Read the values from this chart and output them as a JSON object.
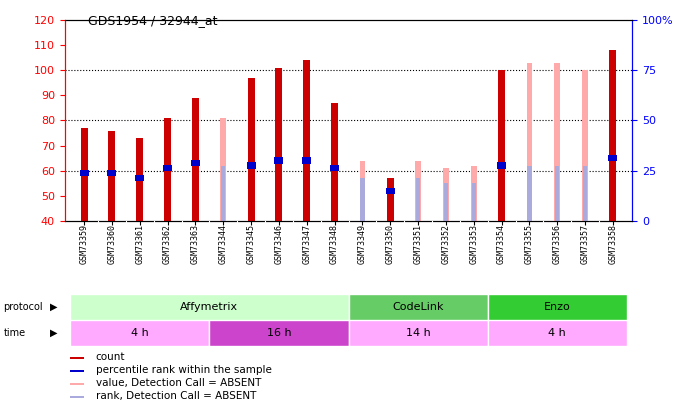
{
  "title": "GDS1954 / 32944_at",
  "samples": [
    "GSM73359",
    "GSM73360",
    "GSM73361",
    "GSM73362",
    "GSM73363",
    "GSM73344",
    "GSM73345",
    "GSM73346",
    "GSM73347",
    "GSM73348",
    "GSM73349",
    "GSM73350",
    "GSM73351",
    "GSM73352",
    "GSM73353",
    "GSM73354",
    "GSM73355",
    "GSM73356",
    "GSM73357",
    "GSM73358"
  ],
  "count_values": [
    77,
    76,
    73,
    81,
    89,
    null,
    97,
    101,
    104,
    87,
    null,
    57,
    null,
    null,
    null,
    100,
    null,
    null,
    null,
    108
  ],
  "percentile_values": [
    59,
    59,
    57,
    61,
    63,
    null,
    62,
    64,
    64,
    61,
    null,
    52,
    null,
    null,
    null,
    62,
    null,
    null,
    null,
    65
  ],
  "absent_value_values": [
    null,
    null,
    null,
    null,
    null,
    81,
    null,
    null,
    null,
    null,
    64,
    null,
    64,
    61,
    62,
    null,
    103,
    103,
    100,
    null
  ],
  "absent_rank_values": [
    null,
    null,
    null,
    null,
    null,
    62,
    null,
    null,
    null,
    null,
    57,
    null,
    57,
    55,
    55,
    null,
    62,
    62,
    62,
    null
  ],
  "ylim_left": [
    40,
    120
  ],
  "ylim_right": [
    0,
    100
  ],
  "bar_bottom": 40,
  "count_color": "#cc0000",
  "percentile_color": "#0000cc",
  "absent_value_color": "#ffaaaa",
  "absent_rank_color": "#aaaadd",
  "protocol_groups": [
    {
      "label": "Affymetrix",
      "start": 0,
      "end": 9,
      "color": "#ccffcc"
    },
    {
      "label": "CodeLink",
      "start": 10,
      "end": 14,
      "color": "#66cc66"
    },
    {
      "label": "Enzo",
      "start": 15,
      "end": 19,
      "color": "#33cc33"
    }
  ],
  "time_groups": [
    {
      "label": "4 h",
      "start": 0,
      "end": 4,
      "color": "#ffaaff"
    },
    {
      "label": "16 h",
      "start": 5,
      "end": 9,
      "color": "#cc44cc"
    },
    {
      "label": "14 h",
      "start": 10,
      "end": 14,
      "color": "#ffaaff"
    },
    {
      "label": "4 h",
      "start": 15,
      "end": 19,
      "color": "#ffaaff"
    }
  ],
  "dotted_lines": [
    60,
    80,
    100
  ],
  "bar_width": 0.25,
  "right_axis_ticks": [
    0,
    25,
    50,
    75,
    100
  ],
  "right_axis_labels": [
    "0",
    "25",
    "50",
    "75",
    "100%"
  ],
  "absent_bar_width": 0.2,
  "rank_bar_width": 0.15
}
